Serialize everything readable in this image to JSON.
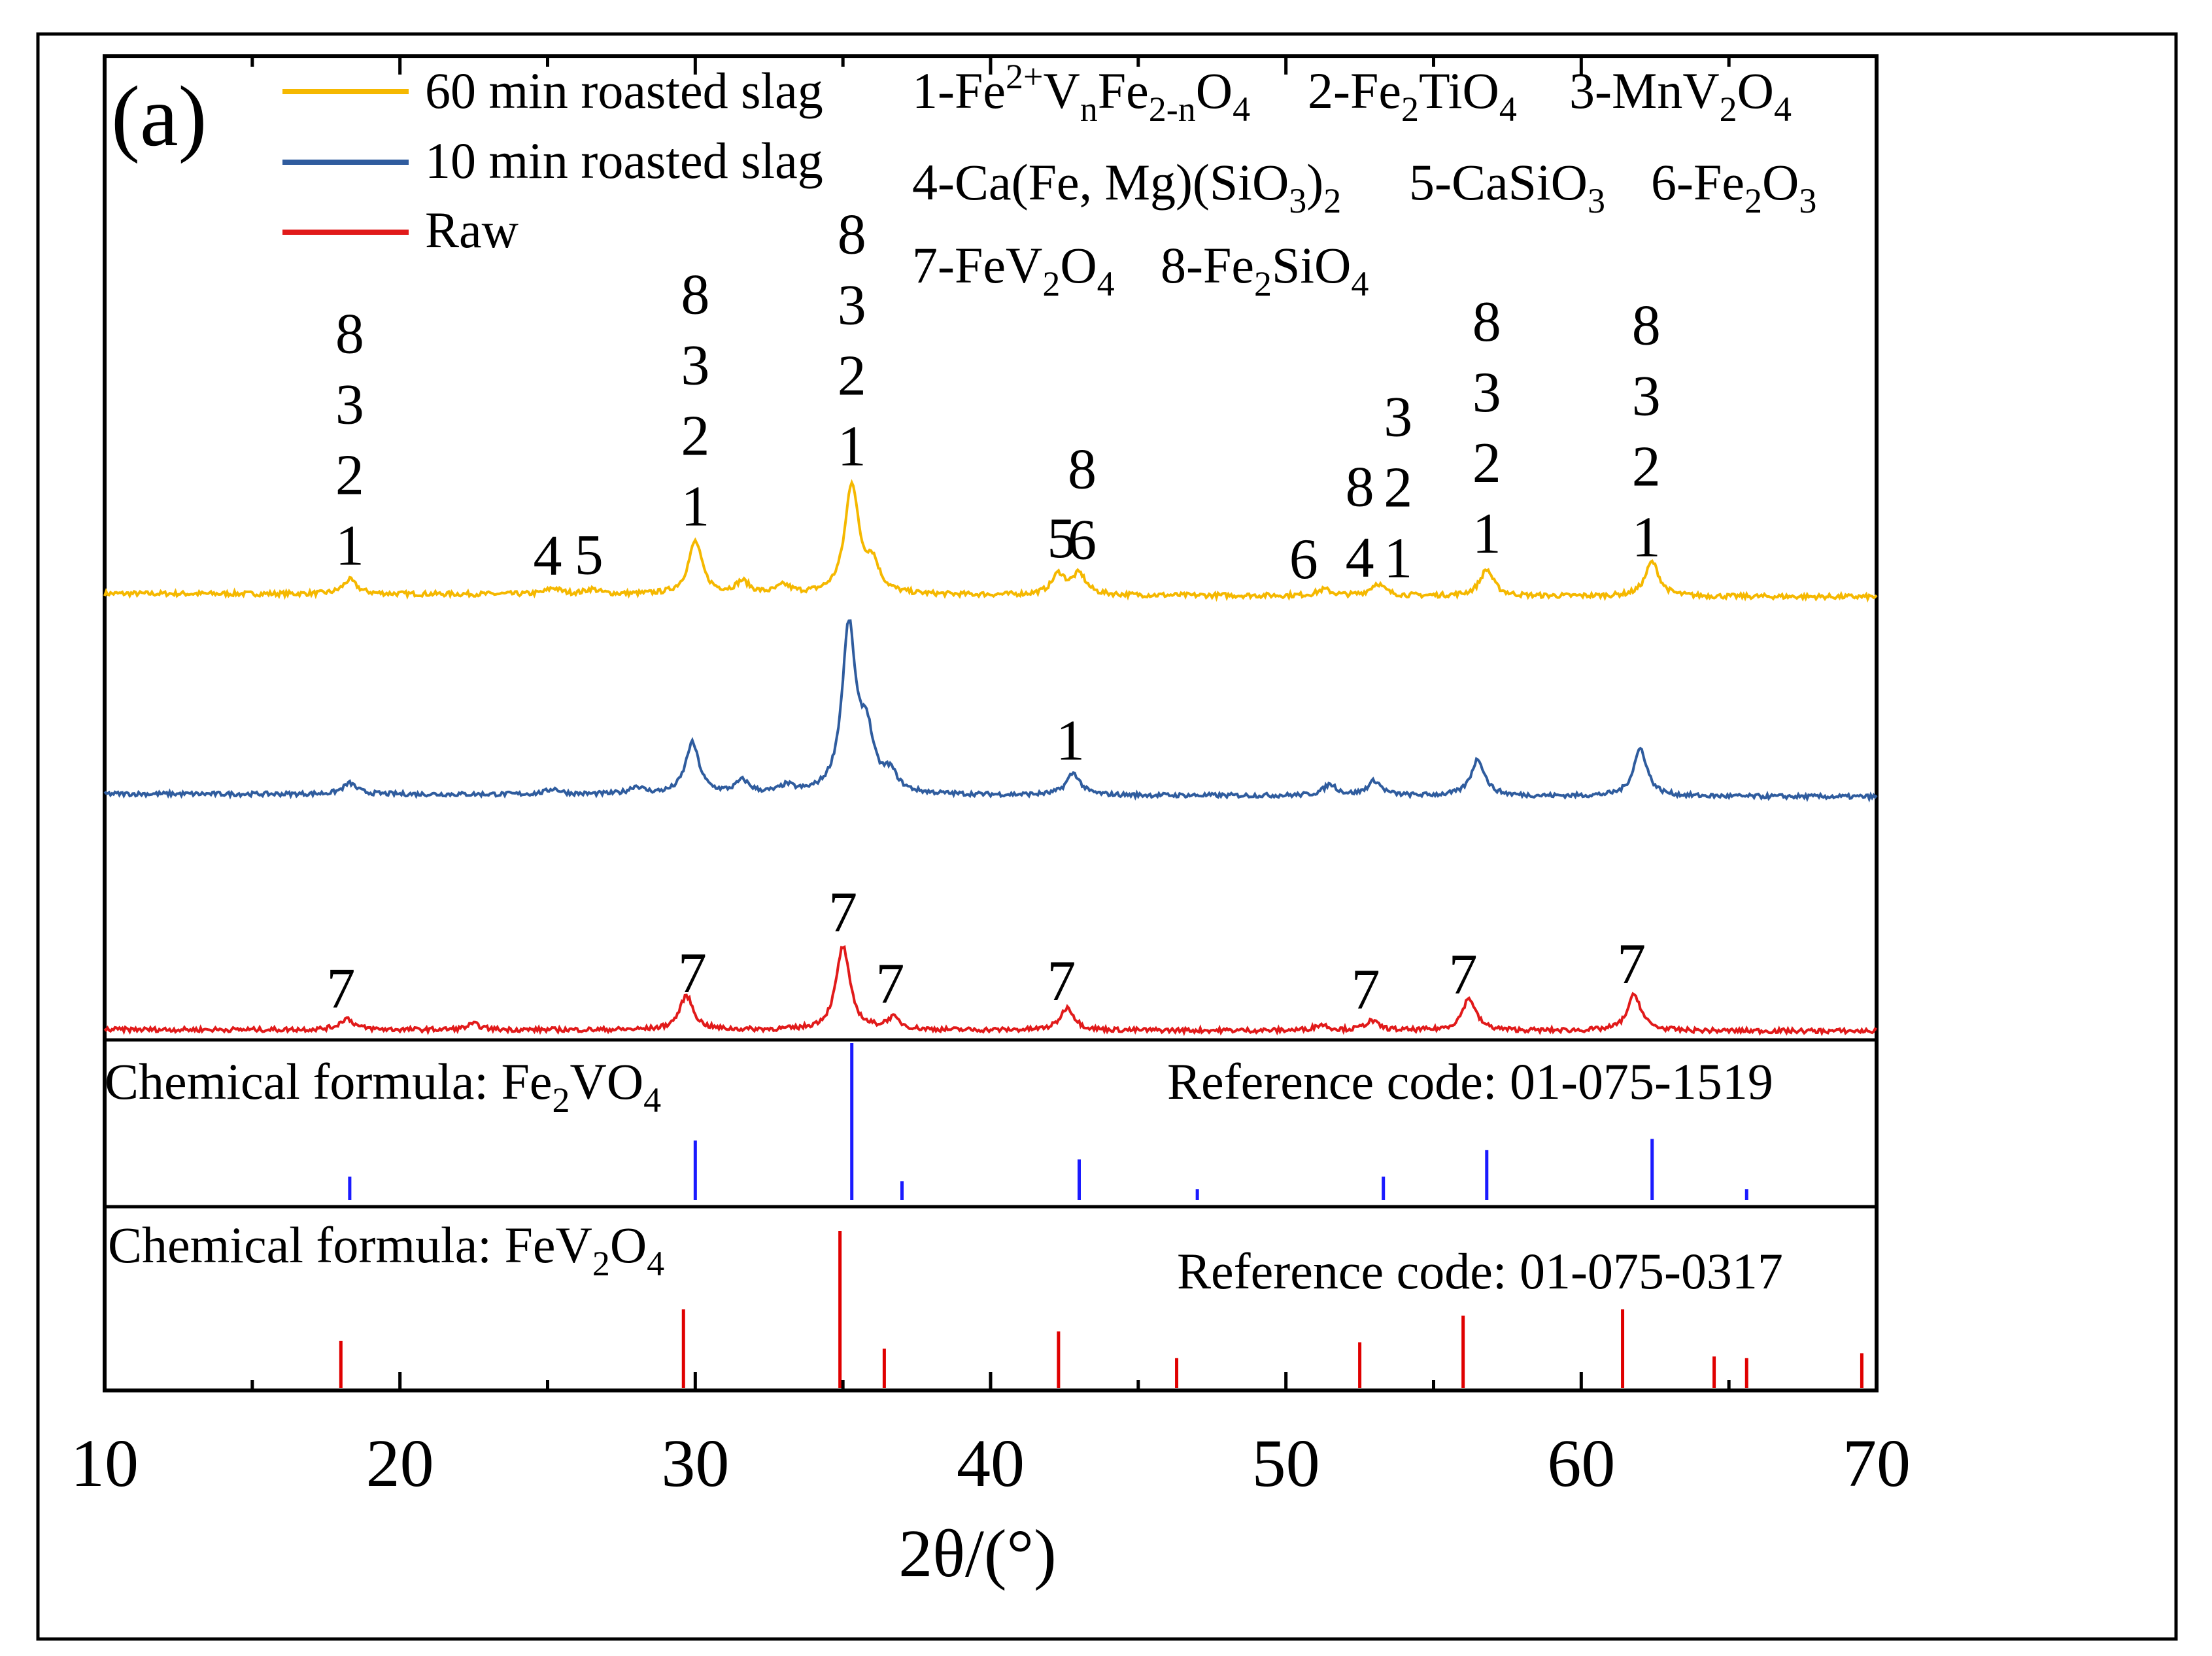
{
  "panel_label": "(a)",
  "legend": [
    {
      "label": "60 min roasted slag",
      "color": "#f5b800"
    },
    {
      "label": "10 min roasted slag",
      "color": "#2f5c9e"
    },
    {
      "label": "Raw",
      "color": "#e11a1a"
    }
  ],
  "phase_key": {
    "line1": [
      {
        "pre": "1-Fe",
        "sup": "2+",
        "mid": "V",
        "sub1": "n",
        "post": "Fe",
        "sub2": "2-n",
        "end": "O",
        "sub3": "4"
      },
      {
        "pre": "2-Fe",
        "sub1": "2",
        "post": "TiO",
        "sub2": "4"
      },
      {
        "pre": "3-MnV",
        "sub1": "2",
        "post": "O",
        "sub2": "4"
      }
    ],
    "line2": [
      {
        "pre": "4-Ca(Fe, Mg)(SiO",
        "sub1": "3",
        "post": ")",
        "sub2": "2"
      },
      {
        "pre": "5-CaSiO",
        "sub1": "3"
      },
      {
        "pre": "6-Fe",
        "sub1": "2",
        "post": "O",
        "sub2": "3"
      }
    ],
    "line3": [
      {
        "pre": "7-FeV",
        "sub1": "2",
        "post": "O",
        "sub2": "4"
      },
      {
        "pre": "8-Fe",
        "sub1": "2",
        "post": "SiO",
        "sub2": "4"
      }
    ]
  },
  "ref1": {
    "formula_prefix": "Chemical formula: Fe",
    "formula_sub1": "2",
    "formula_mid": "VO",
    "formula_sub2": "4",
    "code": "Reference code: 01-075-1519",
    "color": "#1a1aff"
  },
  "ref2": {
    "formula_prefix": "Chemical formula: FeV",
    "formula_sub1": "2",
    "formula_mid": "O",
    "formula_sub2": "4",
    "code": "Reference code: 01-075-0317",
    "color": "#e00000"
  },
  "chart_data": {
    "type": "line",
    "title": "",
    "xlabel": "2θ/(°)",
    "ylabel": "",
    "xlim": [
      10,
      70
    ],
    "xticks": [
      10,
      20,
      30,
      40,
      50,
      60,
      70
    ],
    "series": [
      {
        "name": "60 min roasted slag",
        "color": "#f5b800",
        "baseline": 0.02,
        "peaks": [
          [
            18.3,
            0.035
          ],
          [
            25.2,
            0.015
          ],
          [
            26.5,
            0.012
          ],
          [
            30.0,
            0.13
          ],
          [
            31.6,
            0.03
          ],
          [
            33.0,
            0.02
          ],
          [
            35.3,
            0.27
          ],
          [
            36.0,
            0.07
          ],
          [
            42.3,
            0.05
          ],
          [
            43.0,
            0.05
          ],
          [
            51.3,
            0.015
          ],
          [
            53.1,
            0.03
          ],
          [
            56.8,
            0.065
          ],
          [
            62.4,
            0.085
          ]
        ]
      },
      {
        "name": "10 min roasted slag",
        "color": "#2f5c9e",
        "baseline": 0.02,
        "peaks": [
          [
            18.3,
            0.03
          ],
          [
            25.2,
            0.015
          ],
          [
            28.0,
            0.02
          ],
          [
            29.9,
            0.14
          ],
          [
            31.6,
            0.035
          ],
          [
            33.1,
            0.02
          ],
          [
            35.2,
            0.45
          ],
          [
            35.8,
            0.15
          ],
          [
            36.6,
            0.05
          ],
          [
            42.8,
            0.06
          ],
          [
            51.5,
            0.03
          ],
          [
            53.0,
            0.04
          ],
          [
            56.5,
            0.1
          ],
          [
            62.0,
            0.13
          ]
        ]
      },
      {
        "name": "Raw",
        "color": "#e11a1a",
        "baseline": 0.01,
        "peaks": [
          [
            18.2,
            0.03
          ],
          [
            22.5,
            0.015
          ],
          [
            29.7,
            0.09
          ],
          [
            35.0,
            0.22
          ],
          [
            36.7,
            0.03
          ],
          [
            42.6,
            0.06
          ],
          [
            51.2,
            0.015
          ],
          [
            52.9,
            0.025
          ],
          [
            56.2,
            0.085
          ],
          [
            61.8,
            0.095
          ]
        ]
      }
    ],
    "reference_patterns": [
      {
        "name": "Fe2VO4 (01-075-1519)",
        "color": "#1a1aff",
        "lines": [
          [
            18.3,
            0.15
          ],
          [
            30.0,
            0.38
          ],
          [
            35.3,
            1.0
          ],
          [
            37.0,
            0.12
          ],
          [
            43.0,
            0.26
          ],
          [
            47.0,
            0.07
          ],
          [
            53.3,
            0.15
          ],
          [
            56.8,
            0.32
          ],
          [
            62.4,
            0.39
          ],
          [
            65.6,
            0.07
          ]
        ]
      },
      {
        "name": "FeV2O4 (01-075-0317)",
        "color": "#e00000",
        "lines": [
          [
            18.0,
            0.3
          ],
          [
            29.6,
            0.5
          ],
          [
            34.9,
            1.0
          ],
          [
            36.4,
            0.25
          ],
          [
            42.3,
            0.36
          ],
          [
            46.3,
            0.19
          ],
          [
            52.5,
            0.29
          ],
          [
            56.0,
            0.46
          ],
          [
            61.4,
            0.5
          ],
          [
            64.5,
            0.2
          ],
          [
            65.6,
            0.19
          ],
          [
            69.5,
            0.22
          ]
        ]
      }
    ],
    "peak_labels": [
      {
        "series": "60 min roasted slag",
        "x": 18.3,
        "stack": [
          "8",
          "3",
          "2",
          "1"
        ]
      },
      {
        "series": "60 min roasted slag",
        "x": 25.0,
        "stack": [
          "4"
        ]
      },
      {
        "series": "60 min roasted slag",
        "x": 26.4,
        "stack": [
          "5"
        ]
      },
      {
        "series": "60 min roasted slag",
        "x": 30.0,
        "stack": [
          "8",
          "3",
          "2",
          "1"
        ]
      },
      {
        "series": "60 min roasted slag",
        "x": 35.3,
        "stack": [
          "8",
          "3",
          "2",
          "1"
        ]
      },
      {
        "series": "60 min roasted slag",
        "x": 42.4,
        "stack": [
          "5"
        ]
      },
      {
        "series": "60 min roasted slag",
        "x": 43.1,
        "stack": [
          "8",
          "6"
        ]
      },
      {
        "series": "60 min roasted slag",
        "x": 50.6,
        "stack": [
          "6"
        ]
      },
      {
        "series": "60 min roasted slag",
        "x": 52.5,
        "stack": [
          "8",
          "4"
        ]
      },
      {
        "series": "60 min roasted slag",
        "x": 53.8,
        "stack": [
          "3",
          "2",
          "1"
        ]
      },
      {
        "series": "60 min roasted slag",
        "x": 56.8,
        "stack": [
          "8",
          "3",
          "2",
          "1"
        ]
      },
      {
        "series": "60 min roasted slag",
        "x": 62.2,
        "stack": [
          "8",
          "3",
          "2",
          "1"
        ]
      },
      {
        "series": "10 min roasted slag",
        "x": 42.7,
        "stack": [
          "1"
        ]
      },
      {
        "series": "Raw",
        "x": 18.0,
        "stack": [
          "7"
        ]
      },
      {
        "series": "Raw",
        "x": 29.9,
        "stack": [
          "7"
        ]
      },
      {
        "series": "Raw",
        "x": 35.0,
        "stack": [
          "7"
        ]
      },
      {
        "series": "Raw",
        "x": 36.6,
        "stack": [
          "7"
        ]
      },
      {
        "series": "Raw",
        "x": 42.4,
        "stack": [
          "7"
        ]
      },
      {
        "series": "Raw",
        "x": 52.7,
        "stack": [
          "7"
        ]
      },
      {
        "series": "Raw",
        "x": 56.0,
        "stack": [
          "7"
        ]
      },
      {
        "series": "Raw",
        "x": 61.7,
        "stack": [
          "7"
        ]
      }
    ],
    "legend_position": "top-left"
  }
}
